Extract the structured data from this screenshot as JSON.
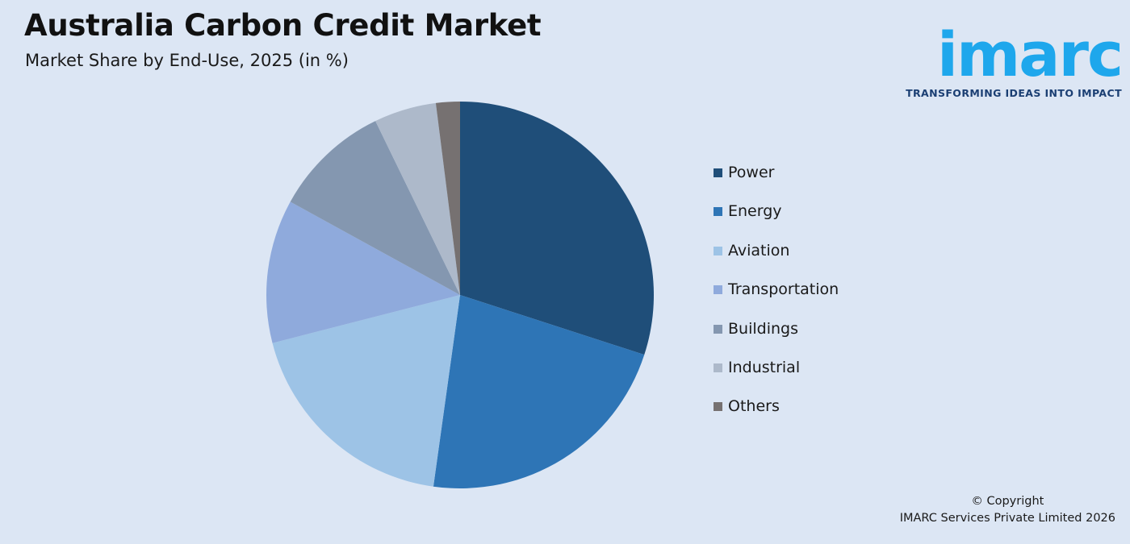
{
  "header": {
    "title": "Australia Carbon Credit Market",
    "subtitle": "Market Share by End-Use, 2025 (in %)"
  },
  "brand": {
    "wordmark": "imarc",
    "tagline": "TRANSFORMING IDEAS INTO IMPACT",
    "color": "#1ea7ec"
  },
  "chart_data": {
    "type": "pie",
    "title": "Australia Carbon Credit Market",
    "subtitle": "Market Share by End-Use, 2025 (in %)",
    "legend_placement": "right",
    "slices": [
      {
        "label": "Power",
        "value": 30.0,
        "color": "#1f4e79"
      },
      {
        "label": "Energy",
        "value": 22.2,
        "color": "#2e75b6"
      },
      {
        "label": "Aviation",
        "value": 18.8,
        "color": "#9dc3e6"
      },
      {
        "label": "Transportation",
        "value": 12.0,
        "color": "#8faadc"
      },
      {
        "label": "Buildings",
        "value": 9.8,
        "color": "#8497b0"
      },
      {
        "label": "Industrial",
        "value": 5.2,
        "color": "#adb9ca"
      },
      {
        "label": "Others",
        "value": 2.0,
        "color": "#767171"
      }
    ]
  },
  "footer": {
    "copyright_line1": "© Copyright",
    "copyright_line2": "IMARC Services Private Limited 2026"
  }
}
